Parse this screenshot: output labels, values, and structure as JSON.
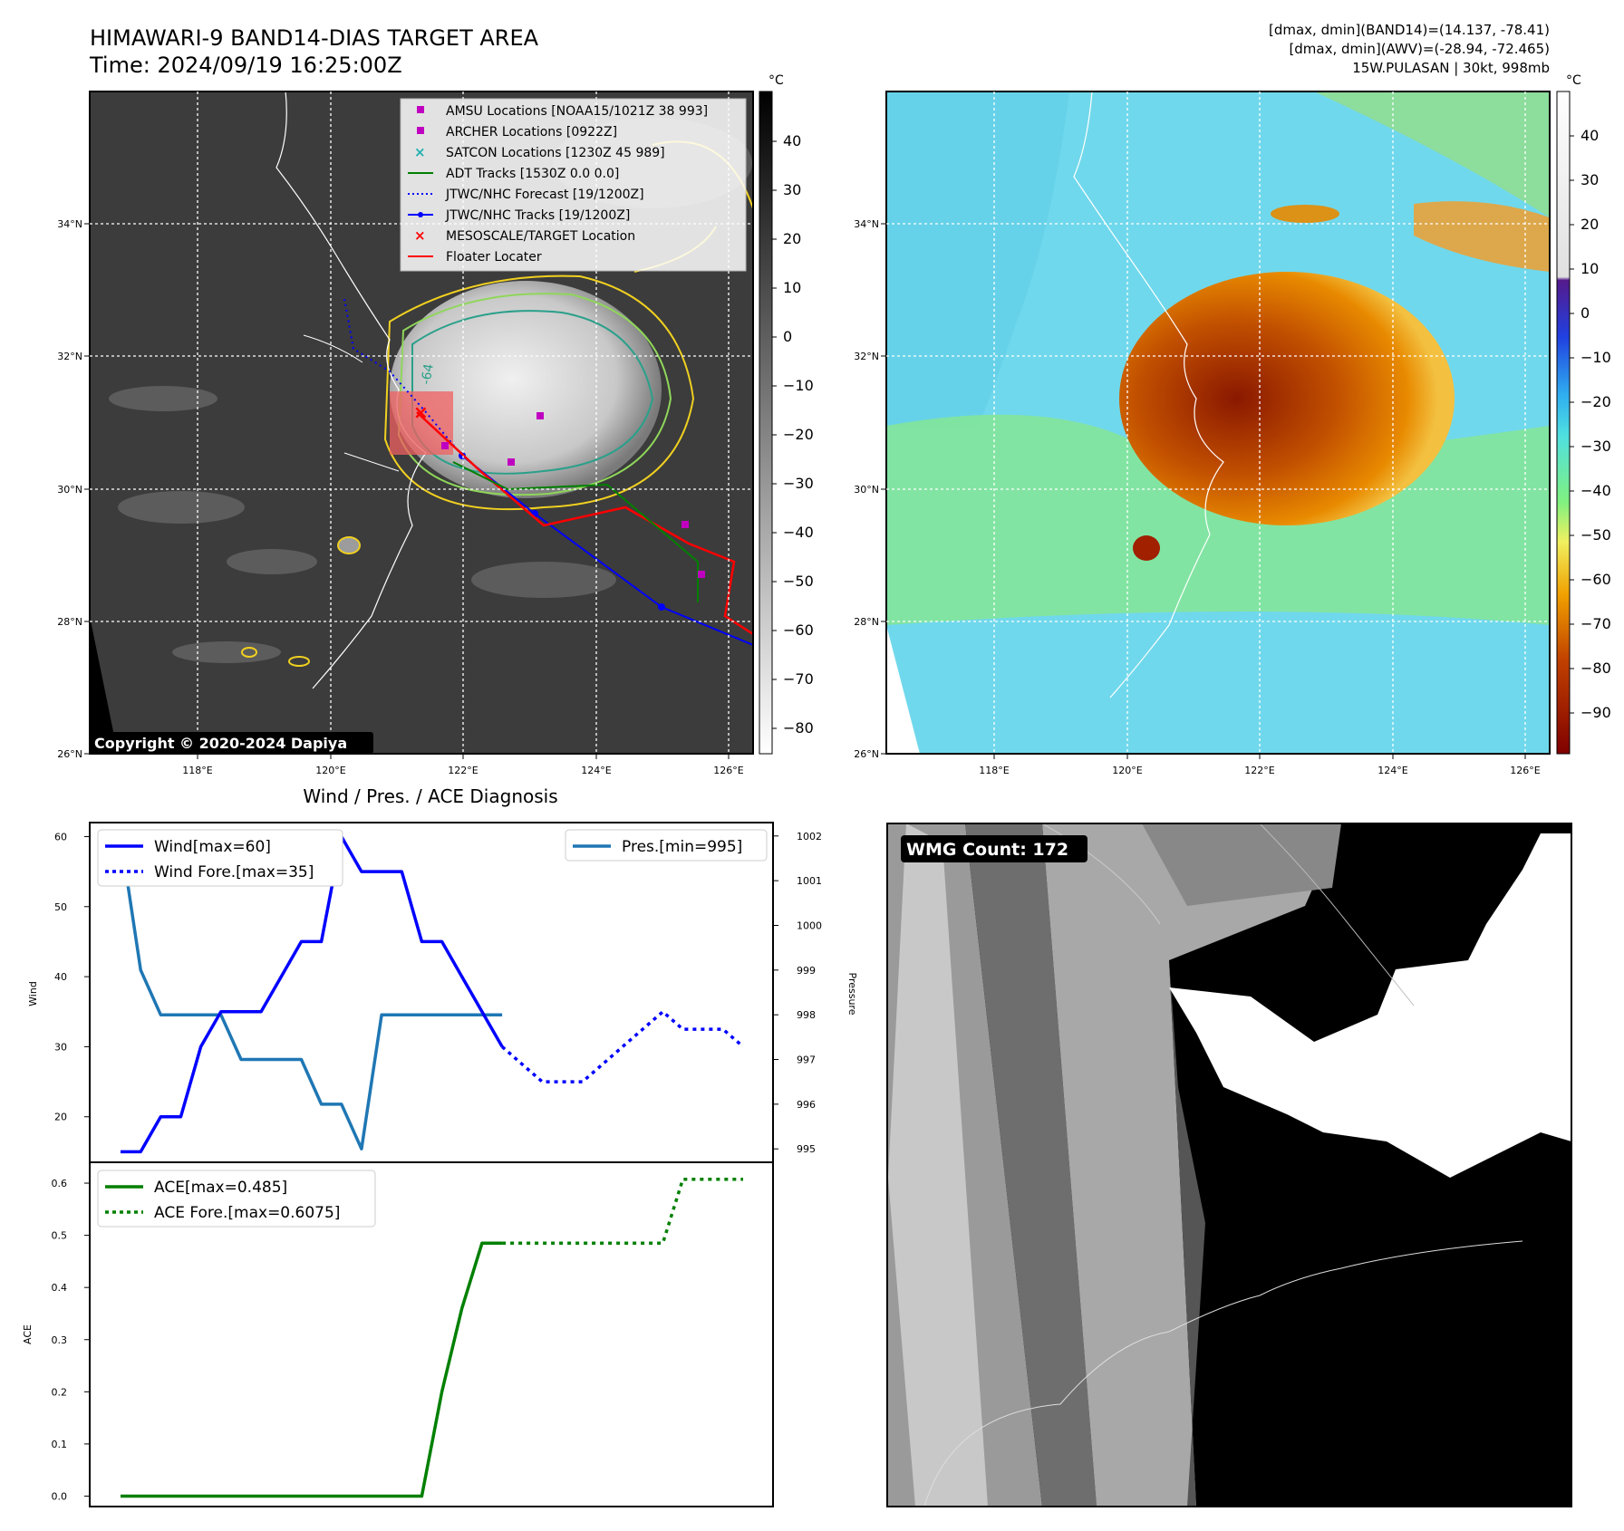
{
  "header": {
    "title_line1": "HIMAWARI-9 BAND14-DIAS TARGET AREA",
    "title_line2": "Time: 2024/09/19 16:25:00Z",
    "info_line1": "[dmax, dmin](BAND14)=(14.137, -78.41)",
    "info_line2": "[dmax, dmin](AWV)=(-28.94, -72.465)",
    "info_line3": "15W.PULASAN | 30kt, 998mb"
  },
  "unit_label": "°C",
  "map_axes": {
    "lon_labels": [
      "118°E",
      "120°E",
      "122°E",
      "124°E",
      "126°E"
    ],
    "lat_labels": [
      "26°N",
      "28°N",
      "30°N",
      "32°N",
      "34°N"
    ]
  },
  "ir_panel": {
    "colorbar_ticks": [
      "40",
      "30",
      "20",
      "10",
      "0",
      "−10",
      "−20",
      "−30",
      "−40",
      "−50",
      "−60",
      "−70",
      "−80"
    ],
    "copyright": "Copyright © 2020-2024 Dapiya",
    "contour_label": "-64",
    "legend": [
      {
        "label": "AMSU Locations [NOAA15/1021Z 38 993]",
        "color": "#c000c0",
        "marker": "square"
      },
      {
        "label": "ARCHER Locations [0922Z]",
        "color": "#c000c0",
        "marker": "square"
      },
      {
        "label": "SATCON Locations [1230Z 45 989]",
        "color": "#20b0b0",
        "marker": "x"
      },
      {
        "label": "ADT Tracks [1530Z 0.0 0.0]",
        "color": "#008000",
        "marker": "line"
      },
      {
        "label": "JTWC/NHC Forecast [19/1200Z]",
        "color": "#0000ff",
        "marker": "dotted"
      },
      {
        "label": "JTWC/NHC Tracks [19/1200Z]",
        "color": "#0000ff",
        "marker": "line-dot"
      },
      {
        "label": "MESOSCALE/TARGET Location",
        "color": "#ff0000",
        "marker": "x"
      },
      {
        "label": "Floater Locater",
        "color": "#ff0000",
        "marker": "line"
      }
    ]
  },
  "awv_panel": {
    "colorbar_ticks": [
      "40",
      "30",
      "20",
      "10",
      "0",
      "−10",
      "−20",
      "−30",
      "−40",
      "−50",
      "−60",
      "−70",
      "−80",
      "−90"
    ]
  },
  "wmg_panel": {
    "badge": "WMG Count: 172"
  },
  "chart_data": [
    {
      "type": "line",
      "title": "Wind / Pres. / ACE Diagnosis",
      "ylabel": "Wind",
      "y2label": "Pressure",
      "ylim": [
        13.5,
        62
      ],
      "y2lim": [
        994.7,
        1002.3
      ],
      "yticks": [
        "20",
        "30",
        "40",
        "50",
        "60"
      ],
      "y2ticks": [
        "995",
        "996",
        "997",
        "998",
        "999",
        "1000",
        "1001",
        "1002"
      ],
      "series": [
        {
          "name": "Wind[max=60]",
          "axis": "left",
          "style": "solid",
          "color": "#0000ff",
          "x": [
            0,
            1,
            2,
            3,
            4,
            5,
            6,
            7,
            8,
            9,
            10,
            11,
            12,
            13,
            14,
            15,
            16,
            17,
            18,
            19
          ],
          "values": [
            15,
            15,
            20,
            20,
            30,
            35,
            35,
            35,
            40,
            45,
            45,
            60,
            55,
            55,
            55,
            45,
            45,
            40,
            35,
            30
          ]
        },
        {
          "name": "Wind Fore.[max=35]",
          "axis": "left",
          "style": "dotted",
          "color": "#0000ff",
          "x": [
            19,
            20,
            21,
            22,
            23,
            24,
            25,
            26,
            27,
            28,
            29,
            30,
            31
          ],
          "values": [
            30,
            27.5,
            25,
            25,
            25,
            27.5,
            30,
            32.5,
            35,
            32.5,
            32.5,
            32.5,
            30
          ]
        },
        {
          "name": "Pres.[min=995]",
          "axis": "right",
          "style": "solid",
          "color": "#1f77b4",
          "x": [
            0,
            1,
            2,
            3,
            4,
            5,
            6,
            7,
            8,
            9,
            10,
            11,
            12,
            13,
            14,
            15,
            16,
            17,
            18,
            19
          ],
          "values": [
            1002,
            999,
            998,
            998,
            998,
            998,
            997,
            997,
            997,
            997,
            996,
            996,
            995,
            998,
            998,
            998,
            998,
            998,
            998,
            998
          ]
        }
      ]
    },
    {
      "type": "line",
      "ylabel": "ACE",
      "ylim": [
        -0.02,
        0.64
      ],
      "yticks": [
        "0.0",
        "0.1",
        "0.2",
        "0.3",
        "0.4",
        "0.5",
        "0.6"
      ],
      "series": [
        {
          "name": "ACE[max=0.485]",
          "style": "solid",
          "color": "#008000",
          "x": [
            0,
            15,
            16,
            17,
            18,
            19
          ],
          "values": [
            0,
            0,
            0.2,
            0.36,
            0.485,
            0.485
          ]
        },
        {
          "name": "ACE Fore.[max=0.6075]",
          "style": "dotted",
          "color": "#008000",
          "x": [
            19,
            23,
            27,
            28,
            29,
            30,
            31
          ],
          "values": [
            0.485,
            0.485,
            0.485,
            0.6075,
            0.6075,
            0.6075,
            0.6075
          ]
        }
      ]
    }
  ]
}
